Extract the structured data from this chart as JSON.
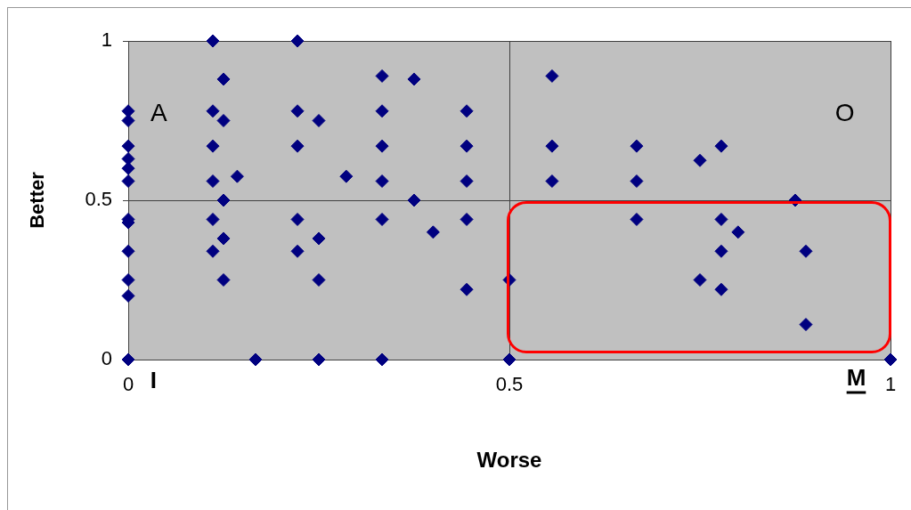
{
  "chart_data": {
    "type": "scatter",
    "xlabel": "Worse",
    "ylabel": "Better",
    "xlim": [
      0,
      1
    ],
    "ylim": [
      0,
      1
    ],
    "xticks": [
      0,
      0.5,
      1
    ],
    "yticks": [
      0,
      0.5,
      1
    ],
    "grid": true,
    "marker": "diamond",
    "legend": false,
    "annotations": [
      "A",
      "O",
      "I",
      "M"
    ],
    "series": [
      {
        "color": "#000080",
        "x": [
          0,
          0,
          0,
          0,
          0,
          0,
          0,
          0,
          0,
          0,
          0,
          0,
          0.111,
          0.111,
          0.111,
          0.111,
          0.111,
          0.111,
          0.125,
          0.125,
          0.125,
          0.125,
          0.125,
          0.143,
          0.167,
          0.222,
          0.222,
          0.222,
          0.222,
          0.222,
          0.25,
          0.25,
          0.25,
          0.25,
          0.286,
          0.333,
          0.333,
          0.333,
          0.333,
          0.333,
          0.333,
          0.375,
          0.375,
          0.4,
          0.444,
          0.444,
          0.444,
          0.444,
          0.444,
          0.5,
          0.5,
          0.556,
          0.556,
          0.556,
          0.667,
          0.667,
          0.667,
          0.75,
          0.75,
          0.778,
          0.778,
          0.778,
          0.778,
          0.8,
          0.875,
          0.889,
          0.889,
          1
        ],
        "values": [
          0.78,
          0.75,
          0.67,
          0.63,
          0.6,
          0.56,
          0.44,
          0.43,
          0.34,
          0.25,
          0.2,
          0,
          1,
          0.78,
          0.67,
          0.56,
          0.44,
          0.34,
          0.88,
          0.75,
          0.5,
          0.38,
          0.25,
          0.575,
          0,
          1,
          0.78,
          0.67,
          0.44,
          0.34,
          0.75,
          0.38,
          0.25,
          0,
          0.575,
          0.89,
          0.78,
          0.67,
          0.56,
          0.44,
          0,
          0.88,
          0.5,
          0.4,
          0.78,
          0.67,
          0.56,
          0.44,
          0.22,
          0.25,
          0,
          0.89,
          0.67,
          0.56,
          0.67,
          0.56,
          0.44,
          0.625,
          0.25,
          0.67,
          0.44,
          0.34,
          0.22,
          0.4,
          0.5,
          0.34,
          0.11,
          0
        ]
      }
    ]
  }
}
